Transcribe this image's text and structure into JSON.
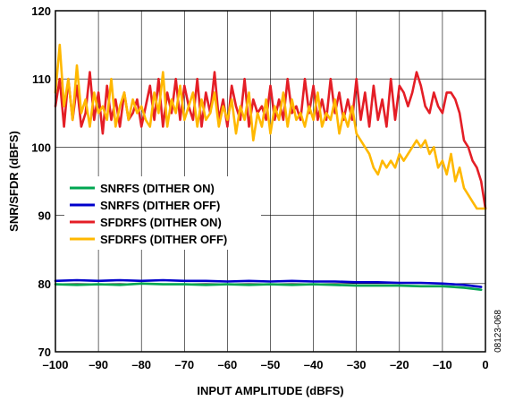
{
  "chart_data": {
    "type": "line",
    "xlabel": "INPUT AMPLITUDE (dBFS)",
    "ylabel": "SNR/SFDR (dBFS)",
    "xlim": [
      -100,
      0
    ],
    "ylim": [
      70,
      120
    ],
    "xticks": [
      "–100",
      "–90",
      "–80",
      "–70",
      "–60",
      "–50",
      "–40",
      "–30",
      "–20",
      "–10",
      "0"
    ],
    "yticks": [
      "70",
      "80",
      "90",
      "100",
      "110",
      "120"
    ],
    "grid": true,
    "legend_position": "left-middle",
    "figure_id": "08123-068",
    "series": [
      {
        "name": "SNRFS (DITHER ON)",
        "color": "#00a651",
        "x": [
          -100,
          -95,
          -90,
          -85,
          -80,
          -75,
          -70,
          -65,
          -60,
          -55,
          -50,
          -45,
          -40,
          -35,
          -30,
          -25,
          -20,
          -15,
          -10,
          -5,
          -1
        ],
        "y": [
          79.9,
          79.8,
          79.9,
          79.8,
          80.0,
          79.9,
          79.9,
          79.8,
          79.9,
          79.8,
          79.9,
          79.8,
          79.9,
          79.8,
          79.7,
          79.7,
          79.7,
          79.6,
          79.6,
          79.4,
          79.1
        ]
      },
      {
        "name": "SNRFS (DITHER OFF)",
        "color": "#0000cc",
        "x": [
          -100,
          -95,
          -90,
          -85,
          -80,
          -75,
          -70,
          -65,
          -60,
          -55,
          -50,
          -45,
          -40,
          -35,
          -30,
          -25,
          -20,
          -15,
          -10,
          -5,
          -1
        ],
        "y": [
          80.4,
          80.5,
          80.4,
          80.5,
          80.4,
          80.5,
          80.4,
          80.4,
          80.3,
          80.4,
          80.3,
          80.4,
          80.3,
          80.3,
          80.2,
          80.2,
          80.1,
          80.1,
          80.0,
          79.8,
          79.5
        ]
      },
      {
        "name": "SFDRFS (DITHER ON)",
        "color": "#e41e26",
        "x": [
          -100,
          -99,
          -98,
          -97,
          -96,
          -95,
          -94,
          -93,
          -92,
          -91,
          -90,
          -89,
          -88,
          -87,
          -86,
          -85,
          -84,
          -83,
          -82,
          -81,
          -80,
          -79,
          -78,
          -77,
          -76,
          -75,
          -74,
          -73,
          -72,
          -71,
          -70,
          -69,
          -68,
          -67,
          -66,
          -65,
          -64,
          -63,
          -62,
          -61,
          -60,
          -59,
          -58,
          -57,
          -56,
          -55,
          -54,
          -53,
          -52,
          -51,
          -50,
          -49,
          -48,
          -47,
          -46,
          -45,
          -44,
          -43,
          -42,
          -41,
          -40,
          -39,
          -38,
          -37,
          -36,
          -35,
          -34,
          -33,
          -32,
          -31,
          -30,
          -29,
          -28,
          -27,
          -26,
          -25,
          -24,
          -23,
          -22,
          -21,
          -20,
          -19,
          -18,
          -17,
          -16,
          -15,
          -14,
          -13,
          -12,
          -11,
          -10,
          -9,
          -8,
          -7,
          -6,
          -5,
          -4,
          -3,
          -2,
          -1,
          0
        ],
        "y": [
          106,
          110,
          103,
          110,
          104,
          109,
          103,
          105,
          111,
          104,
          108,
          102,
          109,
          104,
          107,
          103,
          108,
          104,
          105,
          107,
          103,
          106,
          109,
          104,
          110,
          103,
          108,
          105,
          110,
          104,
          109,
          106,
          104,
          110,
          103,
          108,
          105,
          111,
          104,
          107,
          103,
          109,
          106,
          104,
          110,
          103,
          107,
          105,
          106,
          104,
          109,
          104,
          107,
          104,
          110,
          105,
          106,
          104,
          110,
          105,
          109,
          104,
          107,
          104,
          110,
          105,
          108,
          104,
          107,
          104,
          110,
          104,
          108,
          103,
          109,
          104,
          107,
          103,
          110,
          104,
          109,
          108,
          106,
          108,
          111,
          109,
          106,
          105,
          108,
          106,
          105,
          108,
          108,
          107,
          105,
          101,
          100,
          98,
          97,
          95,
          91
        ]
      },
      {
        "name": "SFDRFS (DITHER OFF)",
        "color": "#ffb800",
        "x": [
          -100,
          -99,
          -98,
          -97,
          -96,
          -95,
          -94,
          -93,
          -92,
          -91,
          -90,
          -89,
          -88,
          -87,
          -86,
          -85,
          -84,
          -83,
          -82,
          -81,
          -80,
          -79,
          -78,
          -77,
          -76,
          -75,
          -74,
          -73,
          -72,
          -71,
          -70,
          -69,
          -68,
          -67,
          -66,
          -65,
          -64,
          -63,
          -62,
          -61,
          -60,
          -59,
          -58,
          -57,
          -56,
          -55,
          -54,
          -53,
          -52,
          -51,
          -50,
          -49,
          -48,
          -47,
          -46,
          -45,
          -44,
          -43,
          -42,
          -41,
          -40,
          -39,
          -38,
          -37,
          -36,
          -35,
          -34,
          -33,
          -32,
          -31,
          -30,
          -29,
          -28,
          -27,
          -26,
          -25,
          -24,
          -23,
          -22,
          -21,
          -20,
          -19,
          -18,
          -17,
          -16,
          -15,
          -14,
          -13,
          -12,
          -11,
          -10,
          -9,
          -8,
          -7,
          -6,
          -5,
          -4,
          -3,
          -2,
          -1,
          0
        ],
        "y": [
          108,
          115,
          106,
          110,
          104,
          112,
          105,
          107,
          103,
          108,
          105,
          106,
          104,
          110,
          103,
          106,
          108,
          104,
          107,
          105,
          106,
          104,
          103,
          108,
          105,
          111,
          103,
          107,
          105,
          109,
          104,
          106,
          108,
          103,
          107,
          104,
          105,
          108,
          103,
          106,
          104,
          107,
          102,
          106,
          104,
          108,
          101,
          105,
          103,
          107,
          102,
          106,
          104,
          108,
          103,
          107,
          104,
          105,
          103,
          106,
          104,
          108,
          103,
          105,
          104,
          107,
          102,
          105,
          103,
          106,
          102,
          101,
          100,
          99,
          97,
          96,
          98,
          97,
          98,
          97,
          99,
          98,
          99,
          100,
          101,
          100,
          101,
          99,
          100,
          97,
          98,
          96,
          99,
          95,
          97,
          94,
          93,
          92,
          91,
          91,
          91
        ]
      }
    ]
  }
}
